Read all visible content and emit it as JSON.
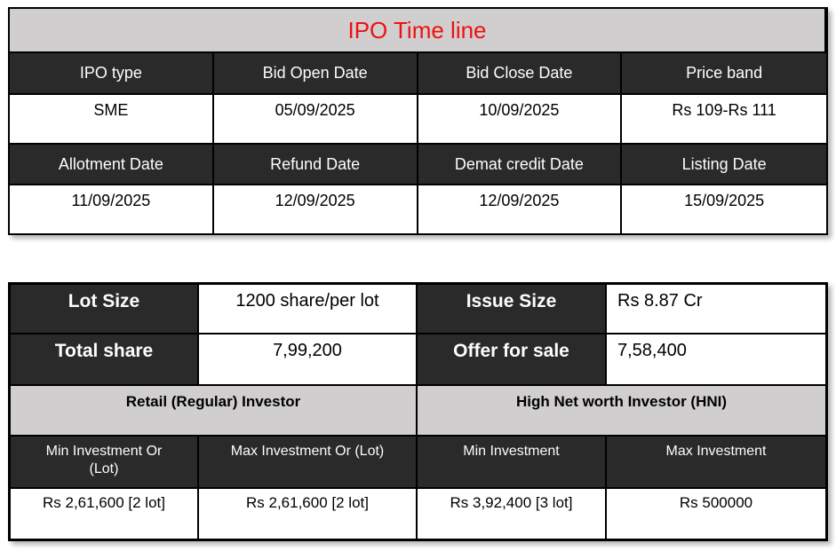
{
  "timeline": {
    "title": "IPO Time line",
    "headers1": [
      "IPO type",
      "Bid Open Date",
      "Bid Close Date",
      "Price band"
    ],
    "values1": [
      "SME",
      "05/09/2025",
      "10/09/2025",
      "Rs 109-Rs 111"
    ],
    "headers2": [
      "Allotment Date",
      "Refund Date",
      "Demat credit Date",
      "Listing Date"
    ],
    "values2": [
      "11/09/2025",
      "12/09/2025",
      "12/09/2025",
      "15/09/2025"
    ]
  },
  "details": {
    "row1": {
      "label": "Lot Size",
      "value": "1200 share/per lot",
      "label2": "Issue Size",
      "value2": "Rs 8.87 Cr"
    },
    "row2": {
      "label": "Total share",
      "value": "7,99,200",
      "label2": "Offer for sale",
      "value2": "7,58,400"
    },
    "groups": [
      "Retail (Regular) Investor",
      "High Net worth Investor (HNI)"
    ],
    "inv_headers": [
      "Min Investment Or (Lot)",
      "Max Investment Or (Lot)",
      "Min Investment",
      "Max Investment"
    ],
    "inv_values": [
      "Rs 2,61,600 [2 lot]",
      "Rs 2,61,600 [2 lot]",
      "Rs 3,92,400 [3 lot]",
      "Rs 500000"
    ]
  },
  "colors": {
    "header_bg": "#2a2a2a",
    "band_bg": "#d0cece",
    "title_text": "#ee1111",
    "header_text": "#fdfdfd",
    "border": "#000000"
  }
}
